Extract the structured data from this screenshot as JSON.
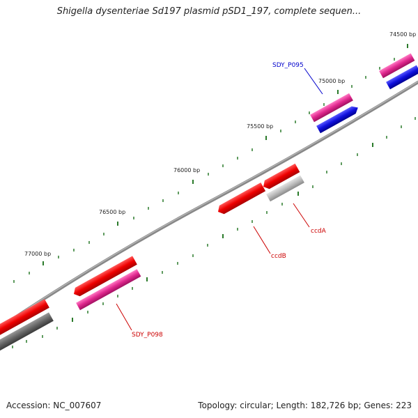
{
  "title": "Shigella dysenteriae Sd197 plasmid pSD1_197, complete sequen...",
  "footer": {
    "accession": "Accession: NC_007607",
    "summary": "Topology: circular; Length: 182,726 bp; Genes: 223"
  },
  "ruler": {
    "labels": [
      "74500 bp",
      "75000 bp",
      "75500 bp",
      "76000 bp",
      "76500 bp",
      "77000 bp"
    ]
  },
  "genes": {
    "sdy_p095": {
      "label": "SDY_P095",
      "color": "#0000cc"
    },
    "ccdB": {
      "label": "ccdB",
      "color": "#cc0000"
    },
    "ccdA": {
      "label": "ccdA",
      "color": "#cc0000"
    },
    "sdy_p098": {
      "label": "SDY_P098",
      "color": "#cc0000"
    }
  },
  "colors": {
    "backbone": "#777777",
    "tick": "#2a7a2a",
    "red": "#ee0000",
    "pink": "#e0288e",
    "blue": "#1010dd",
    "grey": "#bbbbbb",
    "dark_grey": "#666666"
  }
}
